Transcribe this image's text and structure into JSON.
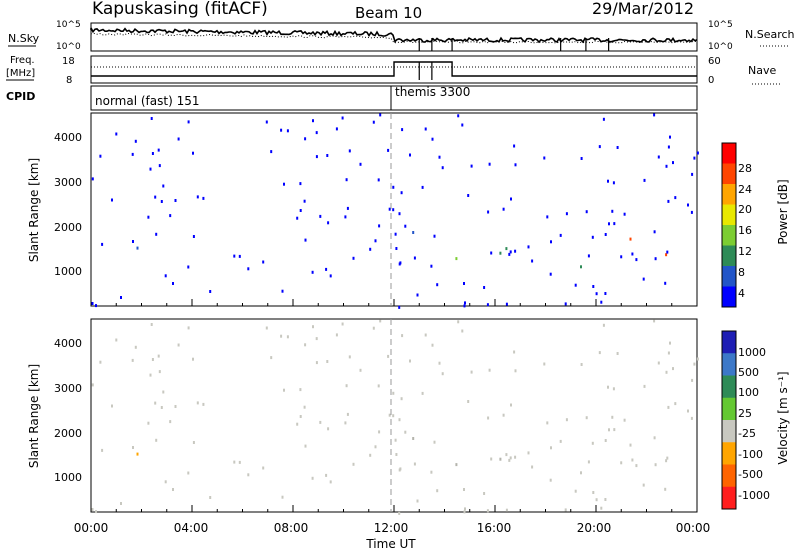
{
  "header": {
    "station": "Kapuskasing (fitACF)",
    "beam": "Beam 10",
    "date": "29/Mar/2012"
  },
  "noise_panel": {
    "left_label": "N.Sky",
    "right_label": "N.Search",
    "axis_top": "10^5",
    "axis_bottom": "10^0"
  },
  "freq_panel": {
    "left_label_1": "Freq.",
    "left_label_2": "[MHz]",
    "right_label": "Nave",
    "freq_ticks": [
      "18",
      "8"
    ],
    "nave_ticks": [
      "60",
      "0"
    ]
  },
  "cpid_panel": {
    "label": "CPID",
    "modes": [
      {
        "name": "normal (fast) 151",
        "start_hour": 0
      },
      {
        "name": "themis 3300",
        "start_hour": 12
      }
    ]
  },
  "x_axis": {
    "label": "Time UT",
    "ticks": [
      "00:00",
      "04:00",
      "08:00",
      "12:00",
      "16:00",
      "20:00",
      "00:00"
    ]
  },
  "power_panel": {
    "ylabel": "Slant Range [km]",
    "yticks": [
      "4000",
      "3000",
      "2000",
      "1000"
    ],
    "colorbar_label": "Power [dB]",
    "colorbar_ticks": [
      "28",
      "24",
      "20",
      "16",
      "12",
      "8",
      "4"
    ],
    "colors": [
      "#0000ff",
      "#2255c8",
      "#2e8b57",
      "#7ccd32",
      "#e8e800",
      "#ffa500",
      "#ff4500",
      "#ff0000"
    ]
  },
  "velocity_panel": {
    "ylabel": "Slant Range [km]",
    "yticks": [
      "4000",
      "3000",
      "2000",
      "1000"
    ],
    "colorbar_label": "Velocity [m s⁻¹]",
    "colorbar_ticks": [
      "1000",
      "500",
      "100",
      "25",
      "-25",
      "-100",
      "-500",
      "-1000"
    ],
    "colors": [
      "#1e1eb4",
      "#3c78c8",
      "#2e8b57",
      "#64c832",
      "#c8c8c0",
      "#ffa500",
      "#ff6400",
      "#ff1e1e"
    ]
  },
  "chart_data": {
    "type": "heatmap",
    "x_unit": "UT hours",
    "xlim": [
      0,
      24
    ],
    "ylim": [
      180,
      4600
    ],
    "scatter_regions": [
      {
        "t0": 0.0,
        "t1": 1.0,
        "r0": 1400,
        "r1": 1800,
        "power": "blue",
        "velocity": "grey"
      },
      {
        "t0": 1.8,
        "t1": 3.0,
        "r0": 1250,
        "r1": 1900,
        "power": "blue-green",
        "velocity": "orange"
      },
      {
        "t0": 2.6,
        "t1": 6.2,
        "r0": 2350,
        "r1": 2650,
        "power": "blue",
        "velocity": "grey"
      },
      {
        "t0": 1.8,
        "t1": 2.8,
        "r0": 900,
        "r1": 1050,
        "power": "blue",
        "velocity": "grey"
      },
      {
        "t0": 10.4,
        "t1": 12.0,
        "r0": 1450,
        "r1": 2000,
        "power": "blue",
        "velocity": "grey"
      },
      {
        "t0": 12.1,
        "t1": 14.3,
        "r0": 1700,
        "r1": 2600,
        "power": "blue",
        "velocity": "grey"
      },
      {
        "t0": 14.3,
        "t1": 24.0,
        "r0": 1050,
        "r1": 1700,
        "power": "blue-green",
        "velocity": "grey"
      },
      {
        "t0": 21.3,
        "t1": 22.8,
        "r0": 1100,
        "r1": 2000,
        "power": "green-orange",
        "velocity": "orange"
      },
      {
        "t0": 12.1,
        "t1": 14.3,
        "r0": 200,
        "r1": 400,
        "power": "blue-green",
        "velocity": "grey"
      }
    ],
    "mode_change_hour": 12
  }
}
